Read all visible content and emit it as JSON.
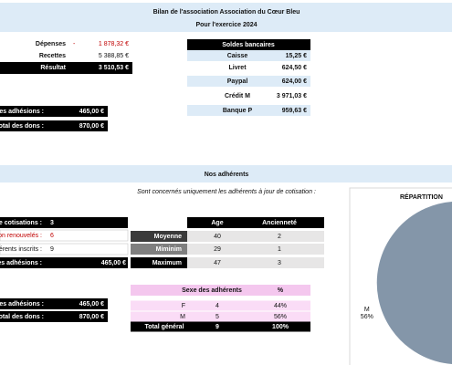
{
  "header": {
    "title": "Bilan de l'association Association du Cœur Bleu",
    "subtitle": "Pour l'exercice 2024"
  },
  "summary": {
    "rows": [
      {
        "label": "Dépenses",
        "sign": "-",
        "value": "1 878,32 €"
      },
      {
        "label": "Recettes",
        "value": "5 388,85 €"
      },
      {
        "label": "Résultat",
        "value": "3 510,53 €"
      }
    ]
  },
  "totals_top": [
    {
      "label": "es adhésions :",
      "value": "465,00 €"
    },
    {
      "label": "otal des dons :",
      "value": "870,00 €"
    }
  ],
  "bank": {
    "title": "Soldes bancaires",
    "rows": [
      {
        "label": "Caisse",
        "value": "15,25 €"
      },
      {
        "label": "Livret",
        "value": "624,50 €"
      },
      {
        "label": "Paypal",
        "value": "624,00 €"
      },
      {
        "label": "Crédit M",
        "value": "3 971,03 €"
      },
      {
        "label": "Banque P",
        "value": "959,63 €"
      }
    ]
  },
  "section": {
    "title": "Nos adhérents",
    "note": "Sont concernés uniquement les adhérents à jour de cotisation :"
  },
  "members": [
    {
      "label": "e cotisations :",
      "value": "3"
    },
    {
      "label": "on renouvelés :",
      "value": "6"
    },
    {
      "label": "érents inscrits :",
      "value": "9"
    },
    {
      "label": "es adhésions :",
      "value": "465,00 €"
    }
  ],
  "stats": {
    "columns": [
      "Age",
      "Ancienneté"
    ],
    "rows": [
      {
        "label": "Moyenne",
        "values": [
          "40",
          "2"
        ]
      },
      {
        "label": "Miminim",
        "values": [
          "29",
          "1"
        ]
      },
      {
        "label": "Maximum",
        "values": [
          "47",
          "3"
        ]
      }
    ]
  },
  "gender": {
    "columns": [
      "Sexe des adhérents",
      "%"
    ],
    "rows": [
      {
        "label": "F",
        "values": [
          "4",
          "44%"
        ]
      },
      {
        "label": "M",
        "values": [
          "5",
          "56%"
        ]
      },
      {
        "label": "Total général",
        "values": [
          "9",
          "100%"
        ]
      }
    ]
  },
  "totals_bottom": [
    {
      "label": "es adhésions :",
      "value": "465,00 €"
    },
    {
      "label": "otal des dons :",
      "value": "870,00 €"
    }
  ],
  "pie": {
    "title": "RÉPARTITION",
    "categories": [
      null,
      "M"
    ],
    "values": [
      44,
      56
    ],
    "value_labels": [
      null,
      "56%"
    ],
    "colors": [
      "#c9d3de",
      "#8496a9"
    ]
  }
}
